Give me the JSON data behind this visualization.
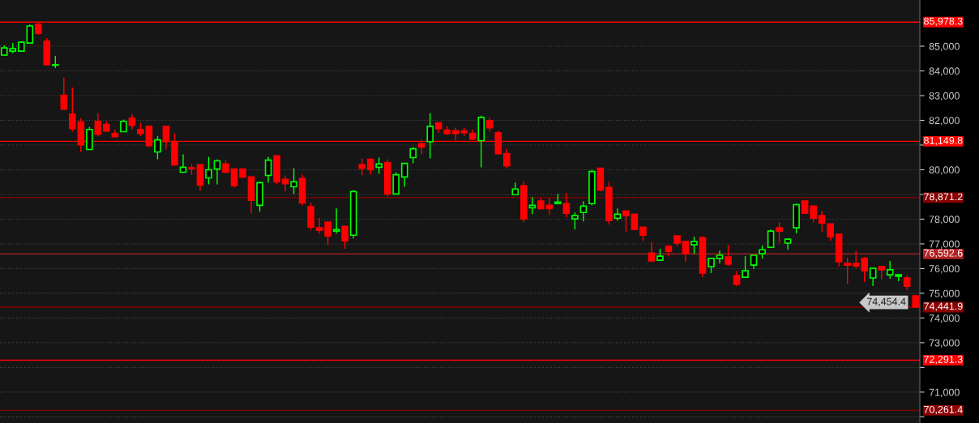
{
  "chart_data": {
    "type": "candlestick",
    "categories": [
      null,
      null,
      null,
      null,
      null,
      null,
      null,
      null,
      null,
      null,
      null,
      null,
      null,
      null,
      null,
      null,
      null,
      null,
      null,
      null,
      null,
      null,
      null,
      null,
      null,
      null,
      null,
      null,
      null,
      null,
      null,
      null,
      null,
      null,
      null,
      null,
      null,
      null,
      null,
      null,
      null,
      null,
      null,
      null,
      null,
      null,
      null,
      null,
      null,
      null,
      null,
      null,
      null,
      null,
      null,
      null,
      null,
      null,
      null,
      null,
      null,
      null,
      null,
      null,
      null,
      null,
      null,
      null,
      null,
      null,
      null,
      null,
      null,
      null,
      null,
      null,
      null,
      null,
      null,
      null,
      null,
      null,
      null,
      null,
      null,
      null,
      null,
      null,
      null,
      null,
      null,
      null,
      null,
      null,
      null,
      null,
      null,
      null,
      null,
      null,
      null,
      null,
      null,
      null,
      null,
      null,
      null,
      null
    ],
    "ohlc": [
      [
        84640,
        85030,
        84610,
        84930
      ],
      [
        84800,
        85130,
        84710,
        84900
      ],
      [
        84800,
        85200,
        84770,
        85160
      ],
      [
        85130,
        85880,
        85100,
        85820
      ],
      [
        85880,
        85950,
        85460,
        85520
      ],
      [
        85200,
        85330,
        84240,
        84250
      ],
      [
        84230,
        84610,
        84120,
        84250
      ],
      [
        83010,
        83730,
        82420,
        82450
      ],
      [
        82250,
        83330,
        81540,
        81670
      ],
      [
        81930,
        82090,
        80720,
        81010
      ],
      [
        80820,
        81730,
        80820,
        81630
      ],
      [
        81960,
        82290,
        81340,
        81440
      ],
      [
        81830,
        81960,
        81540,
        81570
      ],
      [
        81470,
        81630,
        81310,
        81340
      ],
      [
        81540,
        82030,
        81540,
        81960
      ],
      [
        82090,
        82250,
        81630,
        81800
      ],
      [
        81630,
        81900,
        81370,
        81470
      ],
      [
        81760,
        81760,
        80920,
        80980
      ],
      [
        80720,
        81370,
        80420,
        81210
      ],
      [
        81760,
        81760,
        80820,
        81140
      ],
      [
        81140,
        81470,
        80160,
        80200
      ],
      [
        79900,
        80620,
        79900,
        80100
      ],
      [
        80080,
        80230,
        79800,
        80050
      ],
      [
        80200,
        80200,
        79150,
        79380
      ],
      [
        79670,
        80520,
        79410,
        80000
      ],
      [
        80030,
        80420,
        79410,
        80360
      ],
      [
        80230,
        80390,
        79870,
        79900
      ],
      [
        80030,
        80030,
        79280,
        79350
      ],
      [
        80030,
        80030,
        79670,
        79710
      ],
      [
        79710,
        79710,
        78240,
        78760
      ],
      [
        78560,
        79510,
        78300,
        79480
      ],
      [
        79770,
        80520,
        79480,
        80390
      ],
      [
        80560,
        80560,
        79410,
        79510
      ],
      [
        79610,
        79770,
        79120,
        79440
      ],
      [
        79310,
        80060,
        79020,
        79510
      ],
      [
        79640,
        79800,
        78560,
        78660
      ],
      [
        78500,
        78660,
        77550,
        77680
      ],
      [
        77650,
        78040,
        77420,
        77550
      ],
      [
        77880,
        77880,
        76960,
        77320
      ],
      [
        77520,
        78430,
        77420,
        77580
      ],
      [
        77710,
        77710,
        76800,
        77120
      ],
      [
        77350,
        79180,
        77220,
        79120
      ],
      [
        80200,
        80460,
        79770,
        80060
      ],
      [
        80420,
        80460,
        79800,
        80000
      ],
      [
        80100,
        80490,
        79840,
        80230
      ],
      [
        80290,
        80420,
        78920,
        79020
      ],
      [
        79020,
        79900,
        79020,
        79800
      ],
      [
        79710,
        80260,
        79310,
        80260
      ],
      [
        80490,
        80920,
        80260,
        80850
      ],
      [
        81050,
        81210,
        80620,
        80920
      ],
      [
        81140,
        82290,
        80460,
        81760
      ],
      [
        81900,
        81900,
        81500,
        81670
      ],
      [
        81600,
        81760,
        81400,
        81470
      ],
      [
        81570,
        81700,
        81180,
        81470
      ],
      [
        81570,
        81700,
        81370,
        81500
      ],
      [
        81470,
        81630,
        81210,
        81240
      ],
      [
        81180,
        82190,
        80100,
        82120
      ],
      [
        81990,
        82090,
        81540,
        81700
      ],
      [
        81500,
        81570,
        80630,
        80650
      ],
      [
        80650,
        80850,
        80060,
        80160
      ],
      [
        78990,
        79480,
        78990,
        79220
      ],
      [
        79350,
        79540,
        77880,
        78010
      ],
      [
        78460,
        78890,
        78200,
        78560
      ],
      [
        78730,
        78860,
        78400,
        78430
      ],
      [
        78560,
        78860,
        78170,
        78430
      ],
      [
        78630,
        79020,
        78630,
        78690
      ],
      [
        78630,
        79050,
        78070,
        78240
      ],
      [
        78010,
        78270,
        77580,
        78140
      ],
      [
        78270,
        78730,
        77910,
        78530
      ],
      [
        78630,
        80000,
        78560,
        79930
      ],
      [
        80060,
        80060,
        79120,
        79180
      ],
      [
        79280,
        79510,
        77780,
        77940
      ],
      [
        78040,
        78430,
        77940,
        78200
      ],
      [
        78330,
        78330,
        77480,
        78140
      ],
      [
        78200,
        78200,
        77550,
        77580
      ],
      [
        77680,
        77680,
        77120,
        77350
      ],
      [
        76630,
        77090,
        76280,
        76310
      ],
      [
        76340,
        76800,
        76340,
        76500
      ],
      [
        76900,
        76960,
        76500,
        76700
      ],
      [
        77320,
        77320,
        76900,
        77030
      ],
      [
        77090,
        77090,
        76280,
        76600
      ],
      [
        76960,
        77290,
        76600,
        77090
      ],
      [
        77250,
        77320,
        75650,
        75820
      ],
      [
        76080,
        76410,
        75820,
        76410
      ],
      [
        76410,
        76730,
        76210,
        76540
      ],
      [
        76470,
        76960,
        76110,
        76180
      ],
      [
        75720,
        75910,
        75290,
        75360
      ],
      [
        75650,
        76500,
        75620,
        75910
      ],
      [
        76140,
        76540,
        75980,
        76540
      ],
      [
        76600,
        76930,
        76410,
        76760
      ],
      [
        76860,
        77580,
        76830,
        77520
      ],
      [
        77650,
        77880,
        77030,
        77520
      ],
      [
        77030,
        77220,
        76760,
        77190
      ],
      [
        77650,
        78630,
        77420,
        78590
      ],
      [
        78730,
        78730,
        78240,
        78240
      ],
      [
        78530,
        78530,
        77880,
        78040
      ],
      [
        78140,
        78330,
        77480,
        77840
      ],
      [
        77810,
        77810,
        77120,
        77290
      ],
      [
        77390,
        77390,
        76080,
        76280
      ],
      [
        76210,
        76440,
        75390,
        76140
      ],
      [
        76210,
        76730,
        76010,
        76110
      ],
      [
        76410,
        76470,
        75460,
        75910
      ],
      [
        75620,
        76010,
        75290,
        76010
      ],
      [
        76080,
        76080,
        75560,
        75950
      ],
      [
        75750,
        76310,
        75590,
        75950
      ],
      [
        75690,
        75780,
        75490,
        75750
      ],
      [
        75620,
        75720,
        75130,
        75290
      ],
      [
        74900,
        74900,
        74410,
        74440
      ]
    ],
    "colors": [
      "#00ff00",
      "#00ff00",
      "#00ff00",
      "#00ff00",
      "#ff0000",
      "#ff0000",
      "#00ff00",
      "#ff0000",
      "#ff0000",
      "#ff0000",
      "#00ff00",
      "#ff0000",
      "#ff0000",
      "#ff0000",
      "#00ff00",
      "#ff0000",
      "#ff0000",
      "#ff0000",
      "#00ff00",
      "#ff0000",
      "#ff0000",
      "#00ff00",
      "#ff0000",
      "#ff0000",
      "#00ff00",
      "#00ff00",
      "#ff0000",
      "#ff0000",
      "#ff0000",
      "#ff0000",
      "#00ff00",
      "#00ff00",
      "#ff0000",
      "#ff0000",
      "#00ff00",
      "#ff0000",
      "#ff0000",
      "#ff0000",
      "#ff0000",
      "#00ff00",
      "#ff0000",
      "#00ff00",
      "#ff0000",
      "#ff0000",
      "#00ff00",
      "#ff0000",
      "#00ff00",
      "#00ff00",
      "#00ff00",
      "#ff0000",
      "#00ff00",
      "#ff0000",
      "#ff0000",
      "#ff0000",
      "#ff0000",
      "#ff0000",
      "#00ff00",
      "#ff0000",
      "#ff0000",
      "#ff0000",
      "#00ff00",
      "#ff0000",
      "#00ff00",
      "#ff0000",
      "#ff0000",
      "#00ff00",
      "#ff0000",
      "#00ff00",
      "#00ff00",
      "#00ff00",
      "#ff0000",
      "#ff0000",
      "#00ff00",
      "#ff0000",
      "#ff0000",
      "#ff0000",
      "#ff0000",
      "#00ff00",
      "#ff0000",
      "#ff0000",
      "#ff0000",
      "#00ff00",
      "#ff0000",
      "#00ff00",
      "#00ff00",
      "#ff0000",
      "#ff0000",
      "#00ff00",
      "#00ff00",
      "#00ff00",
      "#00ff00",
      "#ff0000",
      "#00ff00",
      "#00ff00",
      "#ff0000",
      "#ff0000",
      "#ff0000",
      "#ff0000",
      "#ff0000",
      "#ff0000",
      "#ff0000",
      "#ff0000",
      "#00ff00",
      "#ff0000",
      "#00ff00",
      "#00ff00",
      "#ff0000",
      "#ff0000"
    ],
    "ylim": [
      69750,
      86870
    ],
    "yticks": [
      {
        "value": 70000,
        "label": null
      },
      {
        "value": 71000,
        "label": "71,000"
      },
      {
        "value": 72000,
        "label": null
      },
      {
        "value": 73000,
        "label": "73,000"
      },
      {
        "value": 74000,
        "label": "74,000"
      },
      {
        "value": 75000,
        "label": "75,000"
      },
      {
        "value": 76000,
        "label": "76,000"
      },
      {
        "value": 77000,
        "label": "77,000"
      },
      {
        "value": 78000,
        "label": "78,000"
      },
      {
        "value": 79000,
        "label": null
      },
      {
        "value": 80000,
        "label": "80,000"
      },
      {
        "value": 81000,
        "label": null
      },
      {
        "value": 82000,
        "label": "82,000"
      },
      {
        "value": 83000,
        "label": "83,000"
      },
      {
        "value": 84000,
        "label": "84,000"
      },
      {
        "value": 85000,
        "label": "85,000"
      }
    ],
    "ref_lines": [
      {
        "axis": "y",
        "value": 85978.3,
        "label": "85,978.3",
        "color": "#ff0000"
      },
      {
        "axis": "y",
        "value": 81149.8,
        "label": "81,149.8",
        "color": "#ff0000"
      },
      {
        "axis": "y",
        "value": 78871.2,
        "label": "78,871.2",
        "color": "#8b0000"
      },
      {
        "axis": "y",
        "value": 76592.6,
        "label": "76,592.6",
        "color": "#b22222"
      },
      {
        "axis": "y",
        "value": 74441.9,
        "label": "74,441.9",
        "color": "#8b0000"
      },
      {
        "axis": "y",
        "value": 72291.3,
        "label": "72,291.3",
        "color": "#ff0000"
      },
      {
        "axis": "y",
        "value": 70261.4,
        "label": "70,261.4",
        "color": "#8b0000"
      }
    ],
    "annotations": [
      "74,454.4"
    ],
    "grid": "y",
    "tick_labels": "y"
  }
}
